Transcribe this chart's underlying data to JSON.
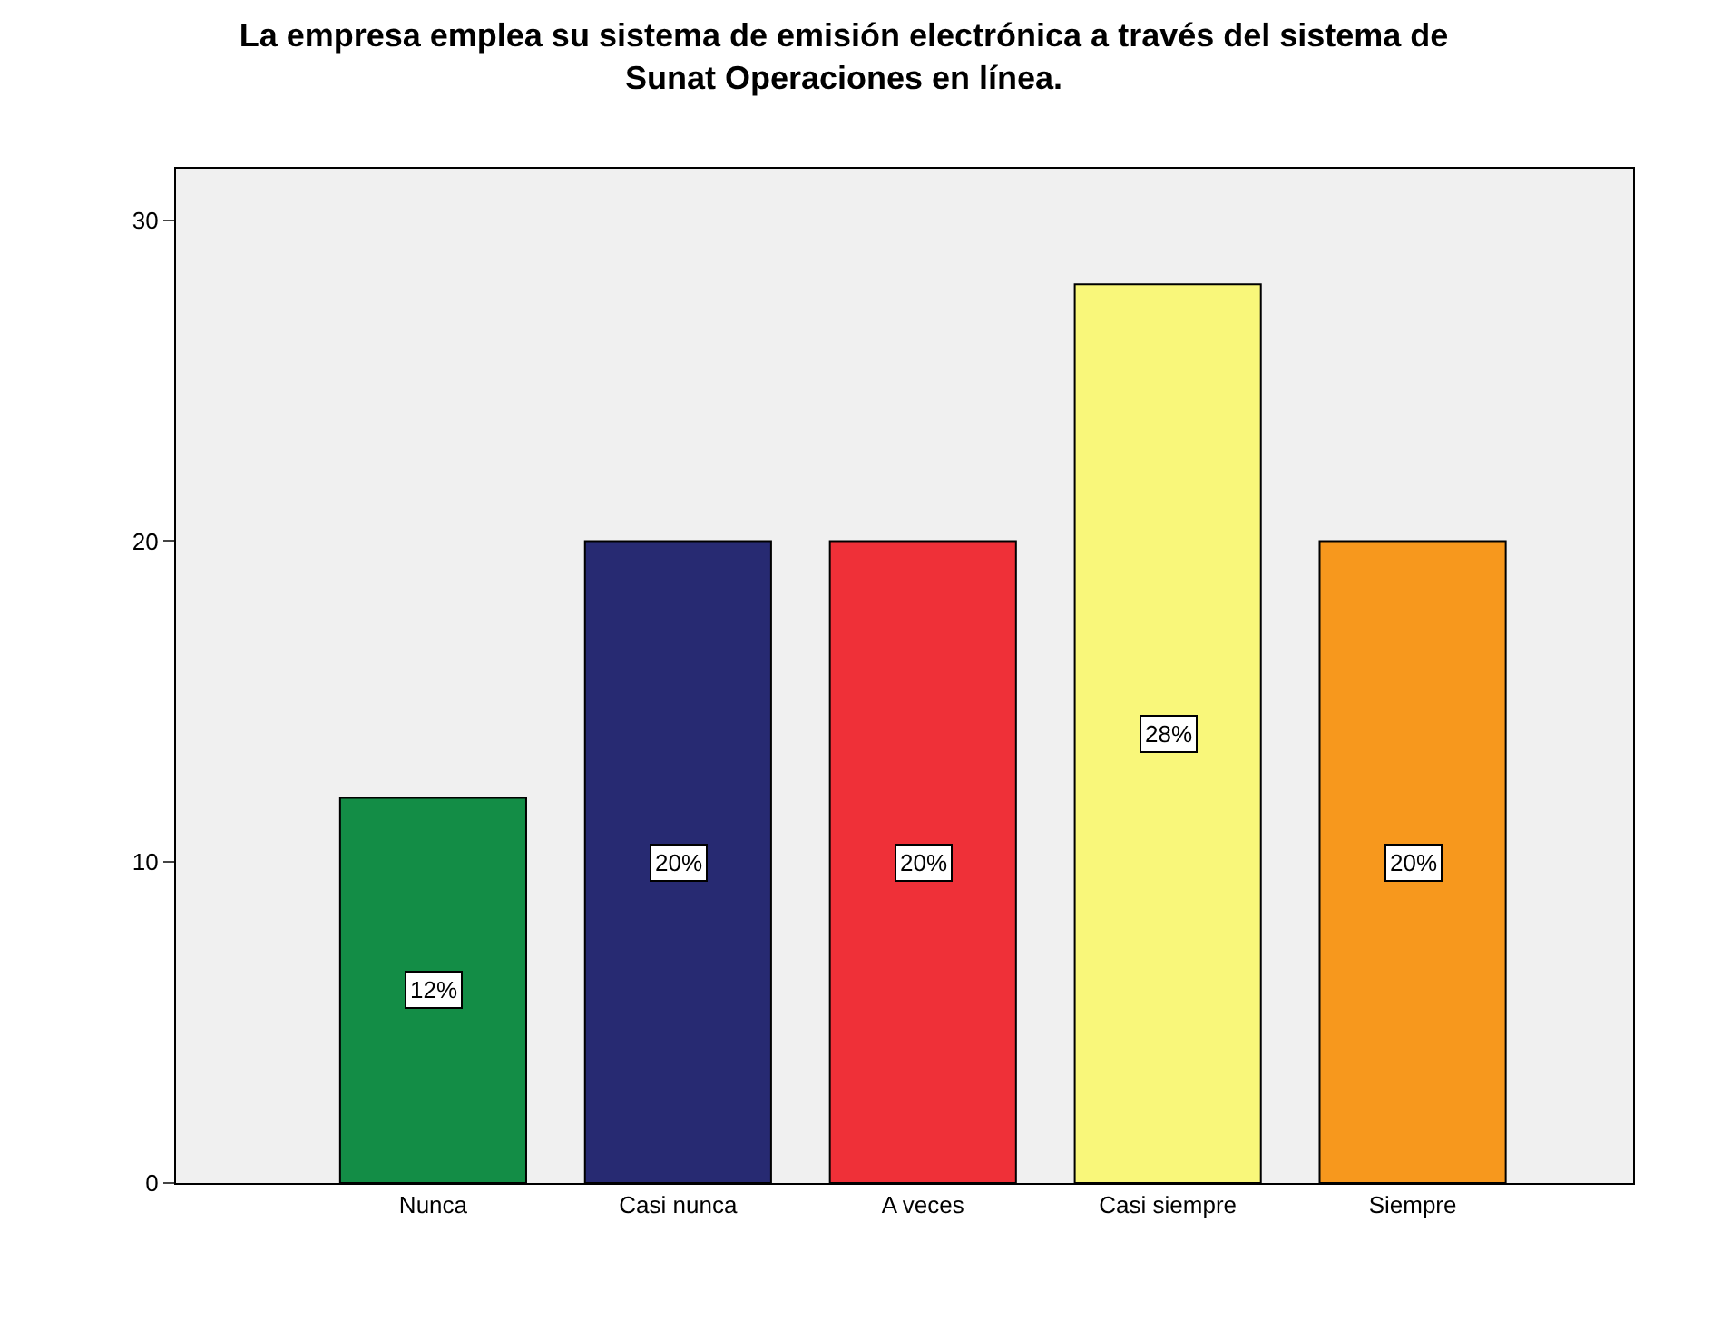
{
  "chart_data": {
    "type": "bar",
    "title": "La empresa emplea su sistema de emisión electrónica a través del sistema de Sunat Operaciones en línea.",
    "categories": [
      "Nunca",
      "Casi nunca",
      "A veces",
      "Casi siempre",
      "Siempre"
    ],
    "values": [
      12,
      20,
      20,
      28,
      20
    ],
    "colors": [
      "#138d46",
      "#272a72",
      "#ef3038",
      "#f9f77a",
      "#f7981d"
    ],
    "value_labels": [
      "12%",
      "20%",
      "20%",
      "28%",
      "20%"
    ],
    "ylim": [
      0,
      31.6
    ],
    "yticks": [
      0,
      10,
      20,
      30
    ],
    "grid": false
  }
}
